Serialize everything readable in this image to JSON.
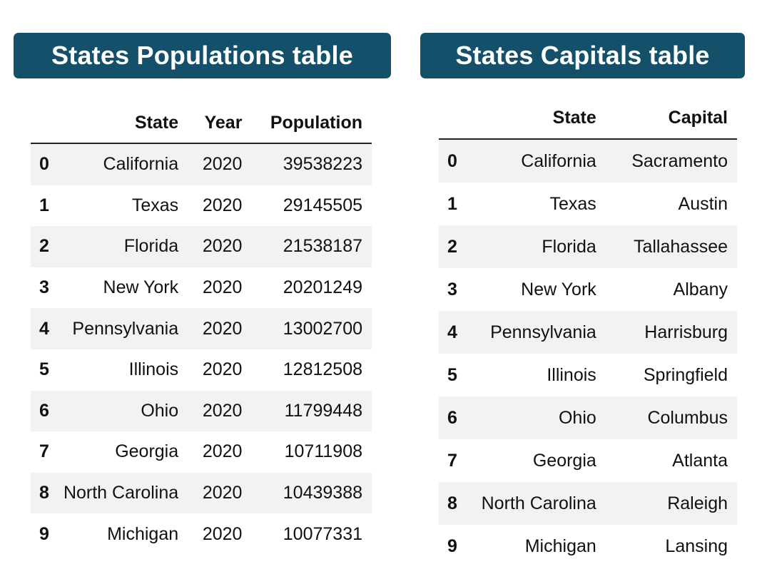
{
  "population_table": {
    "title": "States Populations table",
    "columns": [
      "",
      "State",
      "Year",
      "Population"
    ],
    "rows": [
      {
        "index": "0",
        "state": "California",
        "year": "2020",
        "population": "39538223"
      },
      {
        "index": "1",
        "state": "Texas",
        "year": "2020",
        "population": "29145505"
      },
      {
        "index": "2",
        "state": "Florida",
        "year": "2020",
        "population": "21538187"
      },
      {
        "index": "3",
        "state": "New York",
        "year": "2020",
        "population": "20201249"
      },
      {
        "index": "4",
        "state": "Pennsylvania",
        "year": "2020",
        "population": "13002700"
      },
      {
        "index": "5",
        "state": "Illinois",
        "year": "2020",
        "population": "12812508"
      },
      {
        "index": "6",
        "state": "Ohio",
        "year": "2020",
        "population": "11799448"
      },
      {
        "index": "7",
        "state": "Georgia",
        "year": "2020",
        "population": "10711908"
      },
      {
        "index": "8",
        "state": "North Carolina",
        "year": "2020",
        "population": "10439388"
      },
      {
        "index": "9",
        "state": "Michigan",
        "year": "2020",
        "population": "10077331"
      }
    ]
  },
  "capitals_table": {
    "title": "States Capitals table",
    "columns": [
      "",
      "State",
      "Capital"
    ],
    "rows": [
      {
        "index": "0",
        "state": "California",
        "capital": "Sacramento"
      },
      {
        "index": "1",
        "state": "Texas",
        "capital": "Austin"
      },
      {
        "index": "2",
        "state": "Florida",
        "capital": "Tallahassee"
      },
      {
        "index": "3",
        "state": "New York",
        "capital": "Albany"
      },
      {
        "index": "4",
        "state": "Pennsylvania",
        "capital": "Harrisburg"
      },
      {
        "index": "5",
        "state": "Illinois",
        "capital": "Springfield"
      },
      {
        "index": "6",
        "state": "Ohio",
        "capital": "Columbus"
      },
      {
        "index": "7",
        "state": "Georgia",
        "capital": "Atlanta"
      },
      {
        "index": "8",
        "state": "North Carolina",
        "capital": "Raleigh"
      },
      {
        "index": "9",
        "state": "Michigan",
        "capital": "Lansing"
      }
    ]
  },
  "colors": {
    "banner_background": "#14506a",
    "banner_text": "#ffffff",
    "row_stripe": "#f2f2f2"
  }
}
